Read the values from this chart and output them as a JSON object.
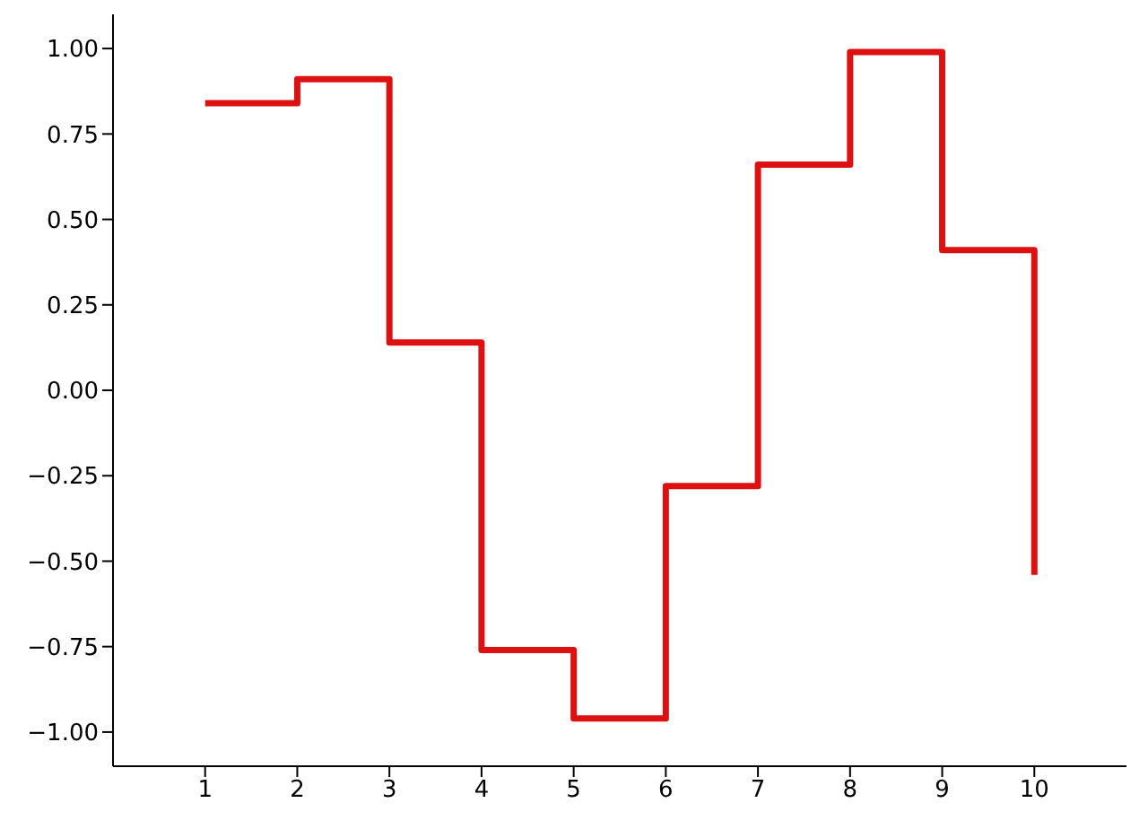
{
  "chart_data": {
    "type": "step",
    "x": [
      1,
      2,
      3,
      4,
      5,
      6,
      7,
      8,
      9,
      10
    ],
    "series": [
      {
        "color": "#dd1111",
        "values": [
          0.84,
          0.91,
          0.14,
          -0.76,
          -0.96,
          -0.28,
          0.66,
          0.99,
          0.41,
          -0.54
        ]
      }
    ],
    "xlim": [
      0,
      11
    ],
    "xticks": [
      1,
      2,
      3,
      4,
      5,
      6,
      7,
      8,
      9,
      10
    ],
    "ylim": [
      -1.1,
      1.1
    ],
    "yticks": [
      {
        "value": -1,
        "label": "−1.00"
      },
      {
        "value": -0.75,
        "label": "−0.75"
      },
      {
        "value": -0.5,
        "label": "−0.50"
      },
      {
        "value": -0.25,
        "label": "−0.25"
      },
      {
        "value": 0,
        "label": "0.00"
      },
      {
        "value": 0.25,
        "label": "0.25"
      },
      {
        "value": 0.5,
        "label": "0.50"
      },
      {
        "value": 0.75,
        "label": "0.75"
      },
      {
        "value": 1,
        "label": "1.00"
      }
    ],
    "grid": false,
    "legend": false,
    "marker": "none",
    "line_style": "solid"
  }
}
